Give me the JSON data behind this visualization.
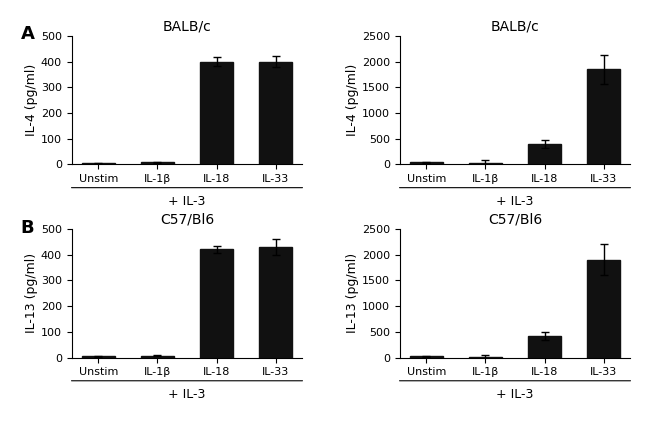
{
  "panels": [
    {
      "label": "A",
      "title": "BALB/c",
      "ylabel": "IL-4 (pg/ml)",
      "xlabel": "+ IL-3",
      "ylim": [
        0,
        500
      ],
      "yticks": [
        0,
        100,
        200,
        300,
        400,
        500
      ],
      "categories": [
        "Unstim",
        "IL-1β",
        "IL-18",
        "IL-33"
      ],
      "values": [
        5,
        8,
        400,
        400
      ],
      "errors": [
        2,
        3,
        18,
        20
      ],
      "row": 0,
      "col": 0
    },
    {
      "label": "",
      "title": "BALB/c",
      "ylabel": "IL-4 (pg/ml)",
      "xlabel": "+ IL-3",
      "ylim": [
        0,
        2500
      ],
      "yticks": [
        0,
        500,
        1000,
        1500,
        2000,
        2500
      ],
      "categories": [
        "Unstim",
        "IL-1β",
        "IL-18",
        "IL-33"
      ],
      "values": [
        40,
        20,
        400,
        1850
      ],
      "errors": [
        15,
        60,
        80,
        280
      ],
      "row": 0,
      "col": 1
    },
    {
      "label": "B",
      "title": "C57/Bl6",
      "ylabel": "IL-13 (pg/ml)",
      "xlabel": "+ IL-3",
      "ylim": [
        0,
        500
      ],
      "yticks": [
        0,
        100,
        200,
        300,
        400,
        500
      ],
      "categories": [
        "Unstim",
        "IL-1β",
        "IL-18",
        "IL-33"
      ],
      "values": [
        5,
        8,
        420,
        430
      ],
      "errors": [
        2,
        3,
        12,
        30
      ],
      "row": 1,
      "col": 0
    },
    {
      "label": "",
      "title": "C57/Bl6",
      "ylabel": "IL-13 (pg/ml)",
      "xlabel": "+ IL-3",
      "ylim": [
        0,
        2500
      ],
      "yticks": [
        0,
        500,
        1000,
        1500,
        2000,
        2500
      ],
      "categories": [
        "Unstim",
        "IL-1β",
        "IL-18",
        "IL-33"
      ],
      "values": [
        30,
        20,
        420,
        1900
      ],
      "errors": [
        10,
        40,
        70,
        300
      ],
      "row": 1,
      "col": 1
    }
  ],
  "bar_color": "#111111",
  "bar_width": 0.55,
  "title_fontsize": 10,
  "tick_fontsize": 8,
  "xlabel_fontsize": 9,
  "ylabel_fontsize": 9,
  "panel_label_fontsize": 13,
  "background_color": "#ffffff",
  "spine_color": "#000000"
}
